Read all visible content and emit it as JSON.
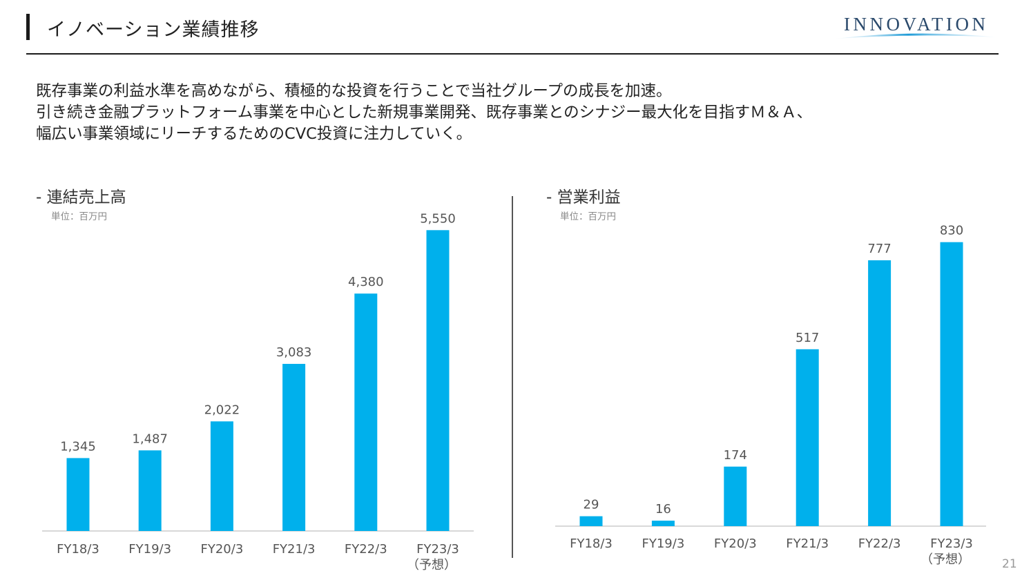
{
  "header": {
    "title": "イノベーション業績推移",
    "logo_text": "INNOVATION"
  },
  "intro": {
    "lines": [
      "既存事業の利益水準を高めながら、積極的な投資を行うことで当社グループの成長を加速。",
      "引き続き金融プラットフォーム事業を中心とした新規事業開発、既存事業とのシナジー最大化を目指すＭ＆Ａ、",
      "幅広い事業領域にリーチするためのCVC投資に注力していく。"
    ]
  },
  "charts": {
    "sales": {
      "title": "- 連結売上高",
      "unit": "単位：百万円"
    },
    "profit": {
      "title": "- 営業利益",
      "unit": "単位：百万円"
    }
  },
  "colors": {
    "bar": "#00b0ec",
    "text": "#333333"
  },
  "chart_data": [
    {
      "type": "bar",
      "title": "- 連結売上高",
      "ylabel": "単位：百万円",
      "categories": [
        "FY18/3",
        "FY19/3",
        "FY20/3",
        "FY21/3",
        "FY22/3",
        "FY23/3"
      ],
      "category_notes": [
        "",
        "",
        "",
        "",
        "",
        "（予想）"
      ],
      "values": [
        1345,
        1487,
        2022,
        3083,
        4380,
        5550
      ],
      "value_labels": [
        "1,345",
        "1,487",
        "2,022",
        "3,083",
        "4,380",
        "5,550"
      ],
      "ylim": [
        0,
        6000
      ],
      "grid": false,
      "legend": "none"
    },
    {
      "type": "bar",
      "title": "- 営業利益",
      "ylabel": "単位：百万円",
      "categories": [
        "FY18/3",
        "FY19/3",
        "FY20/3",
        "FY21/3",
        "FY22/3",
        "FY23/3"
      ],
      "category_notes": [
        "",
        "",
        "",
        "",
        "",
        "（予想）"
      ],
      "values": [
        29,
        16,
        174,
        517,
        777,
        830
      ],
      "value_labels": [
        "29",
        "16",
        "174",
        "517",
        "777",
        "830"
      ],
      "ylim": [
        0,
        900
      ],
      "grid": false,
      "legend": "none"
    }
  ],
  "footer": {
    "page_number": "21"
  }
}
